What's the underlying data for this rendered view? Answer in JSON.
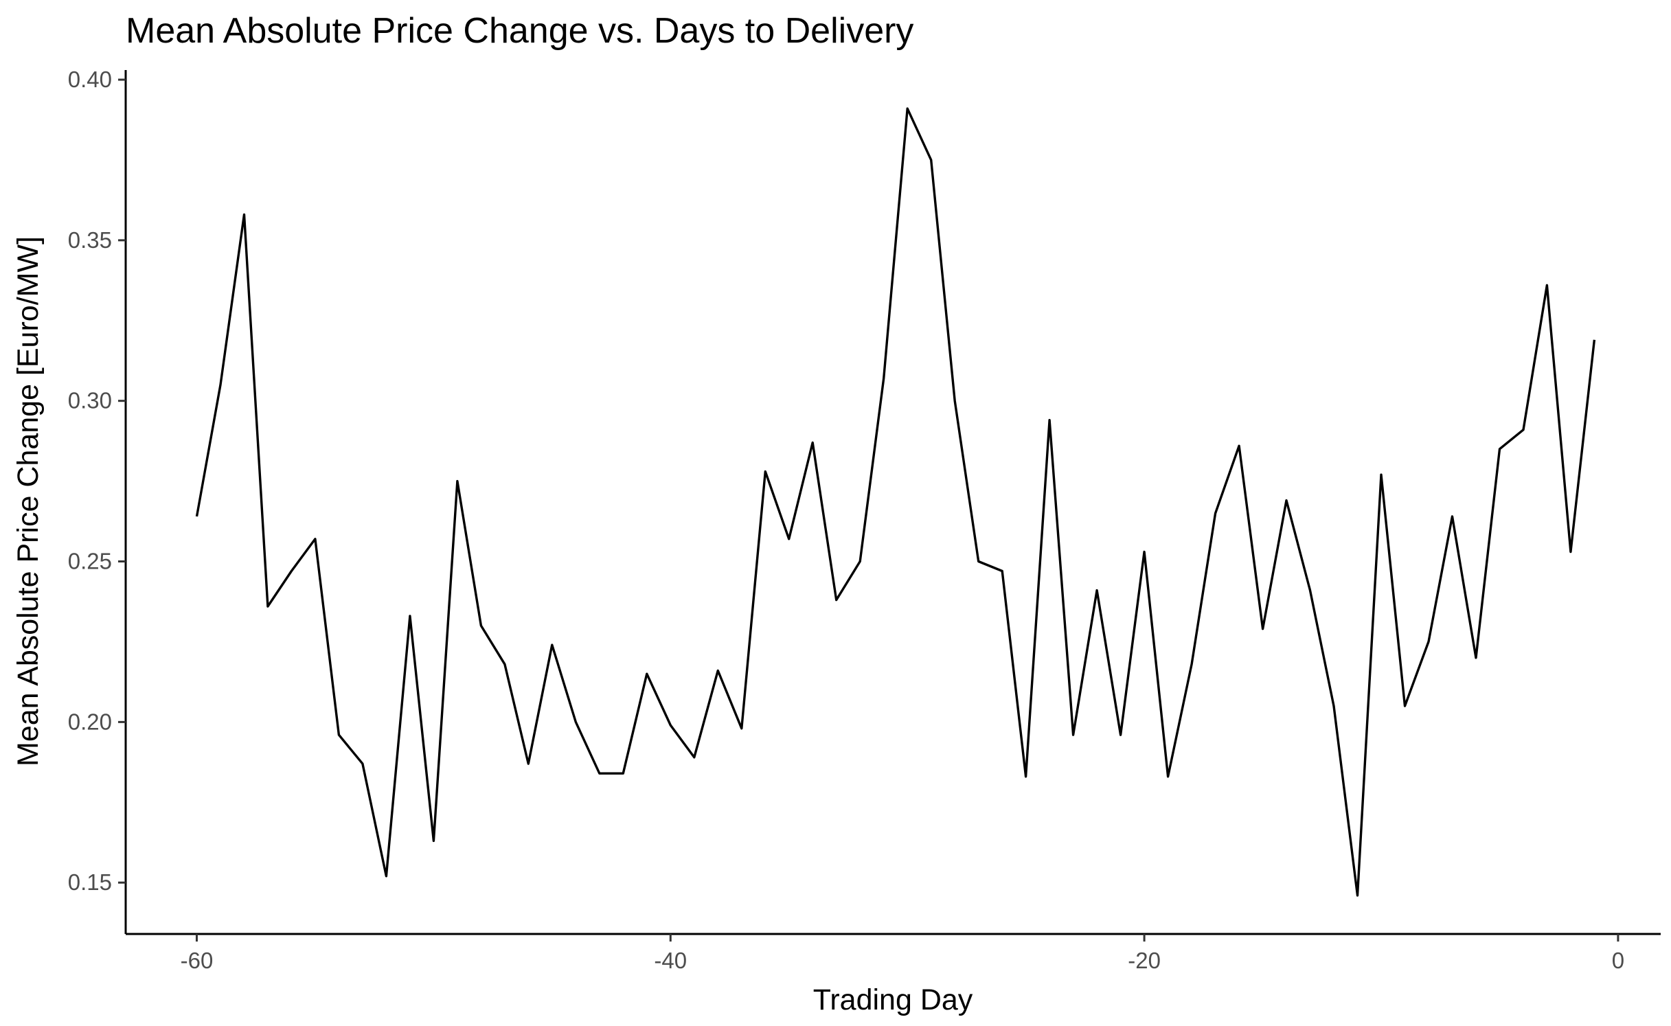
{
  "chart_data": {
    "type": "line",
    "title": "Mean Absolute Price Change vs. Days to Delivery",
    "xlabel": "Trading Day",
    "ylabel": "Mean Absolute Price Change [Euro/MW]",
    "xlim": [
      -63,
      1.8
    ],
    "ylim": [
      0.134,
      0.403
    ],
    "xticks": [
      -60,
      -40,
      -20,
      0
    ],
    "xtick_labels": [
      "-60",
      "-40",
      "-20",
      "0"
    ],
    "yticks": [
      0.15,
      0.2,
      0.25,
      0.3,
      0.35,
      0.4
    ],
    "ytick_labels": [
      "0.15",
      "0.20",
      "0.25",
      "0.30",
      "0.35",
      "0.40"
    ],
    "grid": false,
    "series": [
      {
        "name": "Mean Absolute Price Change",
        "color": "#000000",
        "x": [
          -60,
          -59,
          -58,
          -57,
          -56,
          -55,
          -54,
          -53,
          -52,
          -51,
          -50,
          -49,
          -48,
          -47,
          -46,
          -45,
          -44,
          -43,
          -42,
          -41,
          -40,
          -39,
          -38,
          -37,
          -36,
          -35,
          -34,
          -33,
          -32,
          -31,
          -30,
          -29,
          -28,
          -27,
          -26,
          -25,
          -24,
          -23,
          -22,
          -21,
          -20,
          -19,
          -18,
          -17,
          -16,
          -15,
          -14,
          -13,
          -12,
          -11,
          -10,
          -9,
          -8,
          -7,
          -6,
          -5,
          -4,
          -3,
          -2,
          -1
        ],
        "y": [
          0.264,
          0.305,
          0.358,
          0.236,
          0.247,
          0.257,
          0.196,
          0.187,
          0.152,
          0.233,
          0.163,
          0.275,
          0.23,
          0.218,
          0.187,
          0.224,
          0.2,
          0.184,
          0.184,
          0.215,
          0.199,
          0.189,
          0.216,
          0.198,
          0.278,
          0.257,
          0.287,
          0.238,
          0.25,
          0.307,
          0.391,
          0.375,
          0.3,
          0.25,
          0.247,
          0.183,
          0.294,
          0.196,
          0.241,
          0.196,
          0.253,
          0.183,
          0.218,
          0.265,
          0.286,
          0.229,
          0.269,
          0.241,
          0.205,
          0.146,
          0.277,
          0.205,
          0.225,
          0.264,
          0.22,
          0.285,
          0.291,
          0.336,
          0.253,
          0.319
        ]
      }
    ]
  }
}
